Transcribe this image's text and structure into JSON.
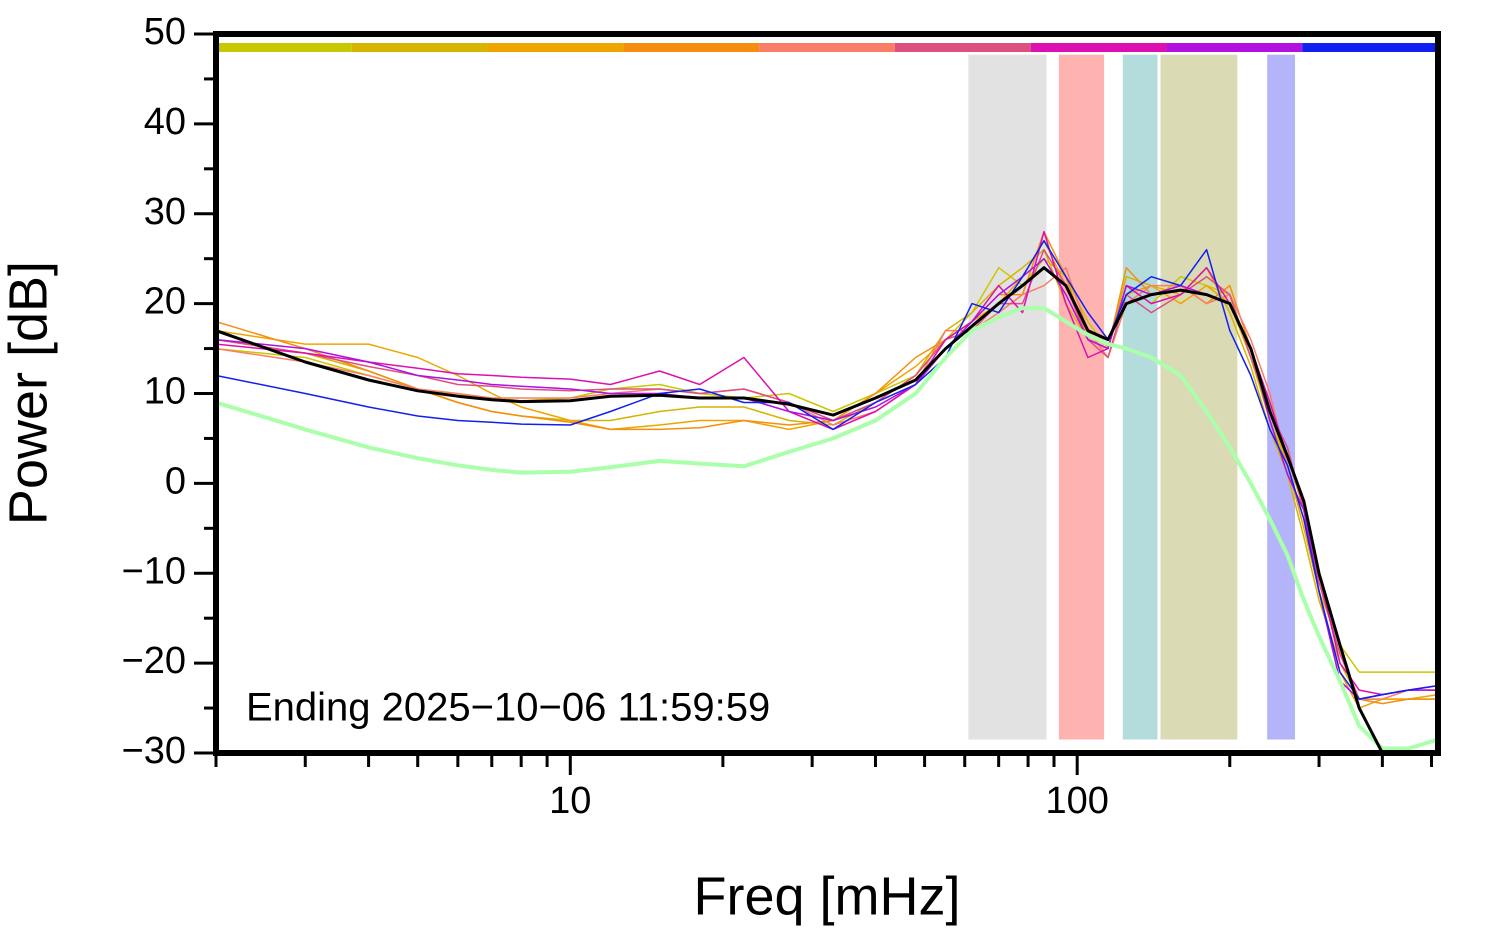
{
  "chart_data": {
    "type": "line",
    "xlabel": "Freq [mHz]",
    "ylabel": "Power [dB]",
    "annotation": "Ending 2025−10−06 11:59:59",
    "xscale": "log",
    "xlim": [
      2,
      515
    ],
    "xticks": [
      10,
      100
    ],
    "xminorticks": [
      2,
      3,
      4,
      5,
      6,
      7,
      8,
      9,
      20,
      30,
      40,
      50,
      60,
      70,
      80,
      90,
      200,
      300,
      400,
      500
    ],
    "ylim": [
      -30,
      50
    ],
    "yticks": [
      {
        "value": -30,
        "label": "−30"
      },
      {
        "value": -20,
        "label": "−20"
      },
      {
        "value": -10,
        "label": "−10"
      },
      0,
      10,
      20,
      30,
      40,
      50
    ],
    "yminorticks": [
      -25,
      -15,
      -5,
      5,
      15,
      25,
      35,
      45
    ],
    "colorbar": [
      "#c8c800",
      "#d6b400",
      "#f0a400",
      "#f58e10",
      "#f87e68",
      "#dc5080",
      "#dc10b0",
      "#b010e0",
      "#1020f0"
    ],
    "bands": [
      {
        "x": [
          61,
          87
        ],
        "y": [
          -28.5,
          47.7
        ],
        "color": "#e2e2e2"
      },
      {
        "x": [
          92,
          113
        ],
        "y": [
          -28.5,
          47.7
        ],
        "color": "#ffb3b0"
      },
      {
        "x": [
          123,
          144
        ],
        "y": [
          -28.5,
          47.7
        ],
        "color": "#b5dcdc"
      },
      {
        "x": [
          146,
          207
        ],
        "y": [
          -28.5,
          47.7
        ],
        "color": "#dadab4"
      },
      {
        "x": [
          237,
          269
        ],
        "y": [
          -28.5,
          47.7
        ],
        "color": "#b4b4fa"
      }
    ],
    "x": [
      2,
      3,
      4,
      5,
      6,
      7,
      8,
      10,
      12,
      15,
      18,
      22,
      27,
      33,
      40,
      48,
      55,
      62,
      70,
      78,
      86,
      95,
      105,
      115,
      125,
      140,
      160,
      180,
      200,
      220,
      240,
      260,
      280,
      300,
      330,
      360,
      400,
      450,
      515
    ],
    "series": [
      {
        "color": "#c8c800",
        "width": 1.5,
        "values": [
          15,
          14,
          12,
          10.5,
          9.8,
          9.5,
          9.2,
          9.5,
          10.5,
          11,
          10,
          9.5,
          10,
          8,
          10,
          12,
          16,
          19,
          24,
          22,
          25,
          23,
          18,
          15,
          22,
          20,
          23,
          22,
          21,
          14,
          7,
          2,
          -4,
          -12,
          -18,
          -21,
          -21,
          -21,
          -21
        ]
      },
      {
        "color": "#d6b400",
        "width": 1.5,
        "values": [
          16,
          14.5,
          12.5,
          10.5,
          9,
          8,
          7.5,
          7,
          7,
          8,
          8.5,
          8.5,
          7,
          6.5,
          9,
          12,
          17,
          19,
          22,
          24,
          26,
          20,
          16,
          15,
          23,
          22,
          21,
          24,
          19,
          13,
          6,
          1,
          -6,
          -13,
          -20,
          -24,
          -24,
          -24,
          -24
        ]
      },
      {
        "color": "#f0a400",
        "width": 1.5,
        "values": [
          17,
          15.5,
          15.5,
          14,
          12,
          10,
          8.5,
          7,
          6,
          6.5,
          7,
          7,
          6,
          7,
          10,
          13,
          16,
          18,
          20,
          23,
          27,
          22,
          17,
          16,
          21,
          22,
          20,
          22,
          20,
          14,
          8,
          2,
          -5,
          -12,
          -21,
          -25,
          -24,
          -24,
          -23.5
        ]
      },
      {
        "color": "#f58e10",
        "width": 1.5,
        "values": [
          18,
          15,
          12.5,
          10.5,
          9,
          8,
          7.5,
          6.8,
          6,
          6,
          6.2,
          7,
          6.5,
          7,
          10,
          14,
          16,
          18,
          21,
          21,
          28,
          23,
          16,
          15,
          24,
          21,
          22,
          20,
          22,
          15,
          9,
          3,
          -3,
          -11,
          -19,
          -24,
          -24.5,
          -24,
          -24
        ]
      },
      {
        "color": "#f87e68",
        "width": 1.5,
        "values": [
          15,
          13.5,
          12,
          10.5,
          10,
          9.5,
          9.5,
          9.5,
          10,
          10.5,
          10,
          10.5,
          9,
          6.5,
          8,
          11,
          17,
          17,
          19,
          21,
          22,
          24,
          17,
          14,
          20,
          22,
          22,
          20,
          21,
          16,
          10,
          2,
          -4,
          -12,
          -22,
          -24,
          -24,
          -23,
          -23
        ]
      },
      {
        "color": "#dc5080",
        "width": 1.5,
        "values": [
          16,
          14.5,
          13,
          12,
          11,
          10.8,
          10.5,
          10.3,
          10.5,
          10.5,
          10,
          10.5,
          9,
          7,
          9,
          12,
          16,
          17,
          20,
          20,
          26,
          22,
          16,
          14,
          21,
          19,
          21,
          23,
          21,
          14,
          8,
          4,
          -3,
          -11,
          -19,
          -24,
          -23.5,
          -23,
          -23
        ]
      },
      {
        "color": "#dc10b0",
        "width": 1.5,
        "values": [
          15.5,
          14.5,
          13.5,
          12.8,
          12.2,
          12,
          11.8,
          11.6,
          11,
          12.5,
          11,
          14,
          8,
          6,
          8,
          11,
          16,
          18,
          22,
          19,
          28,
          20,
          14,
          15,
          22,
          20,
          21,
          24,
          20,
          15,
          9,
          3,
          -2,
          -10,
          -20,
          -23,
          -23.5,
          -23,
          -22.5
        ]
      },
      {
        "color": "#b010e0",
        "width": 1.5,
        "values": [
          16,
          15,
          13.5,
          12,
          11.5,
          11,
          10.8,
          10.5,
          10,
          10,
          9.5,
          9.5,
          8,
          7,
          8.5,
          11,
          15,
          18,
          21,
          23,
          25,
          21,
          16,
          15,
          22,
          21,
          22,
          21,
          20,
          15,
          7,
          1,
          -3,
          -12,
          -22,
          -24,
          -23.5,
          -23,
          -23
        ]
      },
      {
        "color": "#1020f0",
        "width": 1.5,
        "values": [
          12,
          10,
          8.5,
          7.5,
          7,
          6.8,
          6.6,
          6.5,
          8,
          10,
          10.5,
          9,
          9,
          6,
          9,
          11,
          14,
          20,
          19,
          23,
          27,
          23,
          19,
          16,
          21,
          23,
          22,
          26,
          17,
          12,
          6,
          2,
          -4,
          -12,
          -21,
          -24,
          -23.5,
          -23,
          -22.5
        ]
      },
      {
        "color": "#aaffaa",
        "width": 4,
        "values": [
          9,
          6,
          4,
          2.8,
          2,
          1.5,
          1.2,
          1.3,
          1.8,
          2.5,
          2.2,
          1.9,
          3.5,
          5,
          7,
          10,
          14,
          17,
          18.5,
          19.5,
          19.5,
          18,
          16.5,
          15.5,
          15,
          14,
          12,
          8,
          4,
          0,
          -4,
          -8,
          -13,
          -17,
          -22,
          -27,
          -29.5,
          -29.5,
          -28.5
        ]
      },
      {
        "color": "#000000",
        "width": 3,
        "values": [
          17,
          13.5,
          11.5,
          10.3,
          9.7,
          9.3,
          9.1,
          9.2,
          9.7,
          9.8,
          9.5,
          9.5,
          8.8,
          7.6,
          9.5,
          11.5,
          15,
          17.5,
          20,
          22,
          24,
          22,
          17,
          16,
          20,
          21,
          21.5,
          21,
          20,
          15,
          8,
          3,
          -2,
          -10,
          -18,
          -25,
          -30,
          -30,
          -30
        ]
      }
    ]
  }
}
